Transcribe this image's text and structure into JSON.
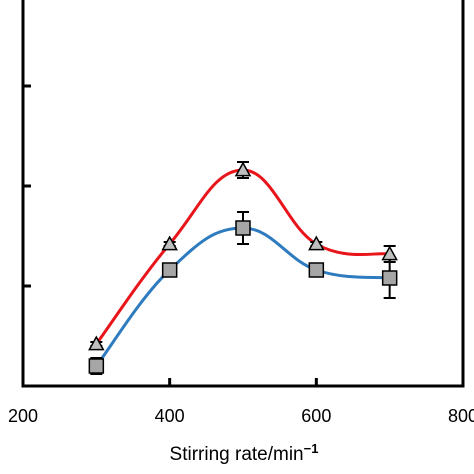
{
  "chart_data": {
    "type": "line",
    "xlabel": "Stirring rate/min",
    "xlabel_superscript": "−1",
    "xlim": [
      200,
      800
    ],
    "x_ticks": [
      "200",
      "400",
      "600",
      "800"
    ],
    "x": [
      300,
      400,
      500,
      600,
      700
    ],
    "ylim": [
      0,
      1
    ],
    "y_tick_count": 4,
    "y_tick_labels_visible": false,
    "grid": false,
    "series": [
      {
        "marker": "triangle",
        "line_color": "#e8151b",
        "marker_fill": "#bfbfbf",
        "values": [
          0.21,
          0.71,
          1.08,
          0.71,
          0.66
        ],
        "errors": [
          0.01,
          0.01,
          0.04,
          0.01,
          0.04
        ]
      },
      {
        "marker": "square",
        "line_color": "#2e7bbf",
        "marker_fill": "#a6a6a6",
        "values": [
          0.1,
          0.58,
          0.79,
          0.58,
          0.54
        ],
        "errors": [
          0.04,
          0.03,
          0.08,
          0.03,
          0.1
        ]
      }
    ]
  }
}
